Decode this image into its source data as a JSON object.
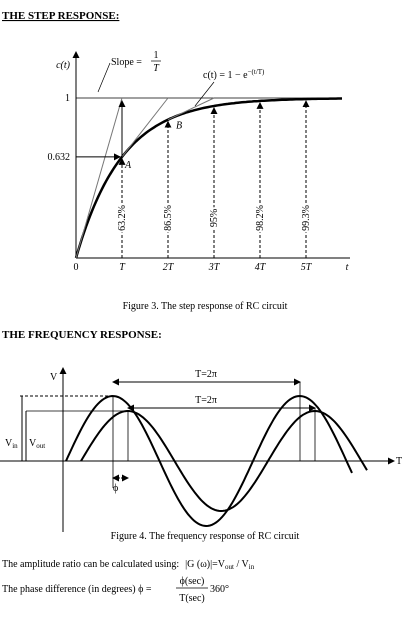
{
  "step": {
    "heading": "THE STEP RESPONSE:",
    "y_label": "c(t)",
    "slope_label": "Slope =",
    "slope_num": "1",
    "slope_den": "T",
    "curve_label": "c(t) = 1 − e",
    "curve_exp": "−(t/T)",
    "level_one": "1",
    "level_632": "0.632",
    "point_a": "A",
    "point_b": "B",
    "percentages": [
      "63.2%",
      "86.5%",
      "95%",
      "98.2%",
      "99.3%"
    ],
    "x_labels": [
      "0",
      "T",
      "2T",
      "3T",
      "4T",
      "5T",
      "t"
    ],
    "caption": "Figure 3. The step response of RC circuit"
  },
  "frequency": {
    "heading": "THE FREQUENCY RESPONSE:",
    "y_label": "V",
    "period_labels": [
      "T=2π",
      "T=2π"
    ],
    "vin": [
      "V",
      "in"
    ],
    "vout": [
      "V",
      "out"
    ],
    "x_label": "T",
    "phase_label": "ϕ",
    "caption": "Figure 4. The frequency response of RC circuit"
  },
  "formulas": {
    "amplitude": {
      "text": "The amplitude ratio can be calculated using:",
      "expr": "|G (ω)|=V",
      "sub1": "out",
      "mid": " / V",
      "sub2": "in"
    },
    "phase": {
      "text": "The phase difference (in degrees) ϕ =",
      "num": "ϕ(sec)",
      "den": "T(sec)",
      "factor": "360°"
    }
  }
}
